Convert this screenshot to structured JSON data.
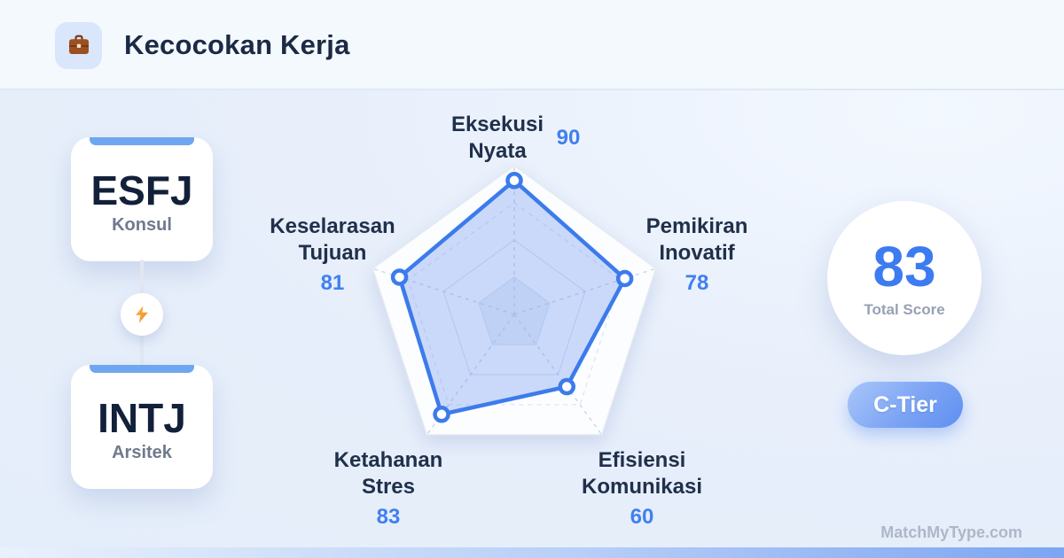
{
  "header": {
    "title": "Kecocokan Kerja",
    "icon": "briefcase-icon"
  },
  "left_panel": {
    "type_a": {
      "code": "ESFJ",
      "name": "Konsul"
    },
    "versus_icon": "lightning-icon",
    "type_b": {
      "code": "INTJ",
      "name": "Arsitek"
    }
  },
  "chart_data": {
    "type": "radar",
    "title": "Kecocokan Kerja",
    "axes": [
      {
        "line1": "Eksekusi",
        "line2": "Nyata",
        "value": 90
      },
      {
        "line1": "Pemikiran",
        "line2": "Inovatif",
        "value": 78
      },
      {
        "line1": "Efisiensi",
        "line2": "Komunikasi",
        "value": 60
      },
      {
        "line1": "Ketahanan",
        "line2": "Stres",
        "value": 83
      },
      {
        "line1": "Keselarasan",
        "line2": "Tujuan",
        "value": 81
      }
    ],
    "scale": {
      "min": 0,
      "max": 100,
      "rings": [
        25,
        50,
        75,
        100
      ]
    },
    "legend": "none",
    "grid": "pentagon, dashed spokes",
    "colors": {
      "series_stroke": "#3C7BEB",
      "series_fill": "rgba(100,146,240,0.33)",
      "marker_fill": "#FFFFFF",
      "outer_fill": "#FCFDFF",
      "grid_stroke": "#DCE3EF",
      "spoke_stroke": "#CBD5E5",
      "value_text": "#4080F0",
      "label_text": "#20304B"
    }
  },
  "score_panel": {
    "total_score": "83",
    "total_label": "Total Score",
    "tier": "C-Tier",
    "tier_color": "#5D8FF0"
  },
  "footer": {
    "watermark": "MatchMyType.com"
  }
}
